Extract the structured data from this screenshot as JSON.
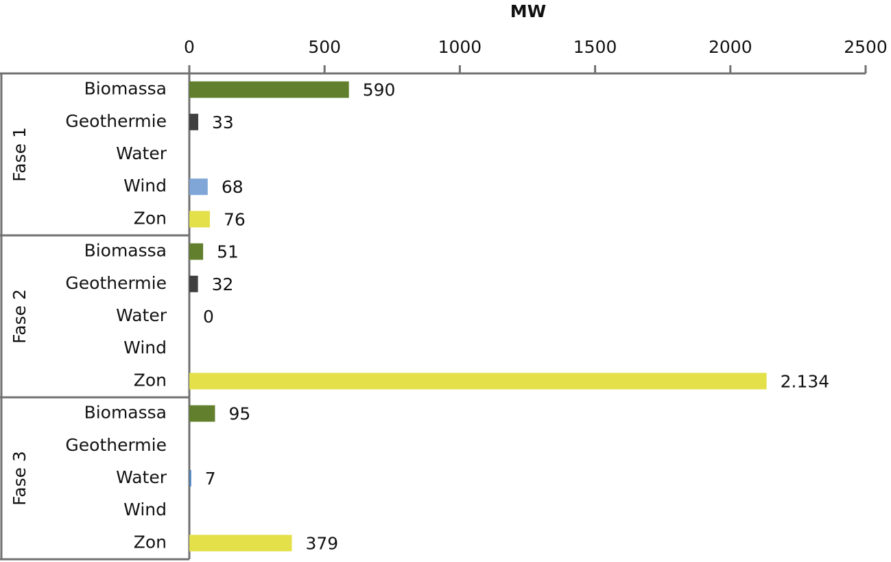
{
  "chart_data": {
    "type": "bar",
    "orientation": "horizontal",
    "title": "MW",
    "xlim": [
      0,
      2500
    ],
    "xticks": [
      0,
      500,
      1000,
      1500,
      2000,
      2500
    ],
    "colors": [
      "#617f2c",
      "#404040",
      "#4f81bd",
      "#7fa6d6",
      "#e4e04a"
    ],
    "groups": [
      {
        "name": "Fase 1",
        "categories": [
          "Biomassa",
          "Geothermie",
          "Water",
          "Wind",
          "Zon"
        ],
        "values": [
          590,
          33,
          null,
          68,
          76
        ]
      },
      {
        "name": "Fase 2",
        "categories": [
          "Biomassa",
          "Geothermie",
          "Water",
          "Wind",
          "Zon"
        ],
        "values": [
          51,
          32,
          0,
          null,
          2134
        ],
        "value_labels": [
          null,
          null,
          null,
          null,
          "2.134"
        ]
      },
      {
        "name": "Fase 3",
        "categories": [
          "Biomassa",
          "Geothermie",
          "Water",
          "Wind",
          "Zon"
        ],
        "values": [
          95,
          null,
          7,
          null,
          379
        ]
      }
    ]
  }
}
